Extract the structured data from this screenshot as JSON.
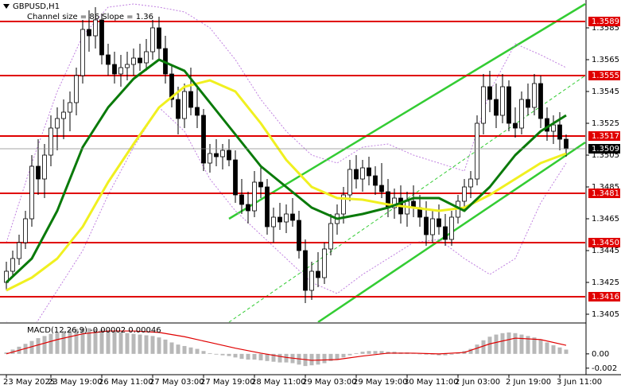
{
  "chart_data": {
    "type": "candlestick",
    "title": "GBPUSD,H1",
    "subtitle": "Channel size = 86 Slope = 1.36",
    "xlim": [
      -1,
      91
    ],
    "ylim": [
      1.34,
      1.36025
    ],
    "yticks": [
      1.3585,
      1.3565,
      1.3545,
      1.3525,
      1.3505,
      1.3485,
      1.3465,
      1.3445,
      1.3425,
      1.3405
    ],
    "xticks": [
      {
        "value": 0,
        "label": "23 May 2025"
      },
      {
        "value": 7,
        "label": "23 May 19:00"
      },
      {
        "value": 15,
        "label": "26 May 11:00"
      },
      {
        "value": 23,
        "label": "27 May 03:00"
      },
      {
        "value": 31,
        "label": "27 May 19:00"
      },
      {
        "value": 39,
        "label": "28 May 11:00"
      },
      {
        "value": 47,
        "label": "29 May 03:00"
      },
      {
        "value": 55,
        "label": "29 May 19:00"
      },
      {
        "value": 63,
        "label": "30 May 11:00"
      },
      {
        "value": 71,
        "label": "2 Jun 03:00"
      },
      {
        "value": 79,
        "label": "2 Jun 19:00"
      },
      {
        "value": 87,
        "label": "3 Jun 11:00"
      }
    ],
    "up_color": "#ffffff",
    "down_color": "#000000",
    "candles": [
      [
        1.3425,
        1.3438,
        1.342,
        1.3432
      ],
      [
        1.3432,
        1.3445,
        1.3428,
        1.344
      ],
      [
        1.344,
        1.3455,
        1.3436,
        1.345
      ],
      [
        1.345,
        1.347,
        1.3446,
        1.3465
      ],
      [
        1.3465,
        1.3505,
        1.346,
        1.3498
      ],
      [
        1.3498,
        1.3515,
        1.348,
        1.349
      ],
      [
        1.349,
        1.3512,
        1.3478,
        1.3505
      ],
      [
        1.3505,
        1.353,
        1.3498,
        1.3522
      ],
      [
        1.3522,
        1.3535,
        1.3508,
        1.3528
      ],
      [
        1.3528,
        1.354,
        1.3515,
        1.3532
      ],
      [
        1.3532,
        1.3545,
        1.352,
        1.3538
      ],
      [
        1.3538,
        1.356,
        1.353,
        1.3555
      ],
      [
        1.3555,
        1.359,
        1.355,
        1.3584
      ],
      [
        1.3584,
        1.3596,
        1.357,
        1.358
      ],
      [
        1.358,
        1.3598,
        1.3572,
        1.359
      ],
      [
        1.359,
        1.3594,
        1.3562,
        1.3568
      ],
      [
        1.3568,
        1.3575,
        1.3555,
        1.3562
      ],
      [
        1.3562,
        1.357,
        1.355,
        1.3556
      ],
      [
        1.3556,
        1.3568,
        1.3548,
        1.356
      ],
      [
        1.356,
        1.357,
        1.3552,
        1.3562
      ],
      [
        1.3562,
        1.3572,
        1.3555,
        1.3566
      ],
      [
        1.3566,
        1.3575,
        1.3558,
        1.3563
      ],
      [
        1.3563,
        1.3578,
        1.3558,
        1.357
      ],
      [
        1.357,
        1.359,
        1.3565,
        1.3585
      ],
      [
        1.3585,
        1.3592,
        1.3565,
        1.3572
      ],
      [
        1.3572,
        1.358,
        1.355,
        1.3556
      ],
      [
        1.3556,
        1.3562,
        1.3535,
        1.354
      ],
      [
        1.354,
        1.3548,
        1.3518,
        1.3528
      ],
      [
        1.3528,
        1.355,
        1.3522,
        1.3545
      ],
      [
        1.3545,
        1.356,
        1.353,
        1.3535
      ],
      [
        1.3535,
        1.3548,
        1.3522,
        1.353
      ],
      [
        1.353,
        1.3534,
        1.3495,
        1.35
      ],
      [
        1.35,
        1.3512,
        1.3494,
        1.3506
      ],
      [
        1.3506,
        1.3515,
        1.3498,
        1.3504
      ],
      [
        1.3504,
        1.3512,
        1.3496,
        1.3508
      ],
      [
        1.3508,
        1.3515,
        1.3498,
        1.3502
      ],
      [
        1.3502,
        1.3508,
        1.3475,
        1.348
      ],
      [
        1.348,
        1.349,
        1.3468,
        1.3474
      ],
      [
        1.3474,
        1.3482,
        1.3462,
        1.347
      ],
      [
        1.347,
        1.3495,
        1.3466,
        1.3488
      ],
      [
        1.3488,
        1.3498,
        1.3478,
        1.3485
      ],
      [
        1.3485,
        1.349,
        1.3455,
        1.346
      ],
      [
        1.346,
        1.3472,
        1.345,
        1.3466
      ],
      [
        1.3466,
        1.3475,
        1.3458,
        1.3463
      ],
      [
        1.3463,
        1.3474,
        1.3456,
        1.3468
      ],
      [
        1.3468,
        1.3478,
        1.346,
        1.3464
      ],
      [
        1.3464,
        1.347,
        1.344,
        1.3445
      ],
      [
        1.3445,
        1.3452,
        1.3412,
        1.342
      ],
      [
        1.342,
        1.3438,
        1.3414,
        1.3432
      ],
      [
        1.3432,
        1.3444,
        1.3422,
        1.3428
      ],
      [
        1.3428,
        1.345,
        1.3424,
        1.3446
      ],
      [
        1.3446,
        1.3468,
        1.3442,
        1.3462
      ],
      [
        1.3462,
        1.3474,
        1.3455,
        1.3468
      ],
      [
        1.3468,
        1.3485,
        1.3462,
        1.348
      ],
      [
        1.348,
        1.3502,
        1.3476,
        1.3496
      ],
      [
        1.3496,
        1.3505,
        1.3484,
        1.349
      ],
      [
        1.349,
        1.3502,
        1.3482,
        1.3497
      ],
      [
        1.3497,
        1.3504,
        1.3486,
        1.3492
      ],
      [
        1.3492,
        1.3498,
        1.348,
        1.3486
      ],
      [
        1.3486,
        1.35,
        1.3478,
        1.3482
      ],
      [
        1.3482,
        1.349,
        1.3466,
        1.3472
      ],
      [
        1.3472,
        1.3484,
        1.3465,
        1.3478
      ],
      [
        1.3478,
        1.3486,
        1.3462,
        1.3468
      ],
      [
        1.3468,
        1.3482,
        1.346,
        1.3476
      ],
      [
        1.3476,
        1.3486,
        1.3466,
        1.3472
      ],
      [
        1.3472,
        1.348,
        1.346,
        1.3466
      ],
      [
        1.3466,
        1.3476,
        1.3448,
        1.3455
      ],
      [
        1.3455,
        1.347,
        1.345,
        1.3465
      ],
      [
        1.3465,
        1.3474,
        1.3455,
        1.346
      ],
      [
        1.346,
        1.3468,
        1.3448,
        1.3452
      ],
      [
        1.3452,
        1.347,
        1.3448,
        1.3466
      ],
      [
        1.3466,
        1.348,
        1.3462,
        1.3476
      ],
      [
        1.3476,
        1.349,
        1.347,
        1.3485
      ],
      [
        1.3485,
        1.3495,
        1.3478,
        1.349
      ],
      [
        1.349,
        1.353,
        1.3486,
        1.3525
      ],
      [
        1.3525,
        1.3556,
        1.3518,
        1.3548
      ],
      [
        1.3548,
        1.3558,
        1.3532,
        1.354
      ],
      [
        1.354,
        1.355,
        1.3522,
        1.353
      ],
      [
        1.353,
        1.3556,
        1.3525,
        1.3548
      ],
      [
        1.3548,
        1.3552,
        1.352,
        1.3525
      ],
      [
        1.3525,
        1.3535,
        1.3516,
        1.3522
      ],
      [
        1.3522,
        1.3545,
        1.3518,
        1.354
      ],
      [
        1.354,
        1.355,
        1.353,
        1.3535
      ],
      [
        1.3535,
        1.3556,
        1.353,
        1.355
      ],
      [
        1.355,
        1.3555,
        1.3522,
        1.3528
      ],
      [
        1.3528,
        1.3535,
        1.3514,
        1.352
      ],
      [
        1.352,
        1.353,
        1.3512,
        1.3524
      ],
      [
        1.3524,
        1.3532,
        1.3508,
        1.3515
      ],
      [
        1.3515,
        1.3518,
        1.3504,
        1.3509
      ]
    ],
    "ma_x": [
      0,
      4,
      8,
      12,
      16,
      20,
      24,
      28,
      32,
      36,
      40,
      44,
      48,
      52,
      56,
      60,
      64,
      68,
      72,
      76,
      80,
      84,
      88
    ],
    "lines": [
      {
        "color": "#c080e0",
        "width": 1,
        "dashed": true,
        "values": [
          1.345,
          1.35,
          1.3545,
          1.358,
          1.3598,
          1.36,
          1.3598,
          1.3595,
          1.3585,
          1.3565,
          1.354,
          1.352,
          1.3505,
          1.35,
          1.351,
          1.3512,
          1.3505,
          1.35,
          1.3495,
          1.3545,
          1.3575,
          1.3568,
          1.356
        ]
      },
      {
        "color": "#c080e0",
        "width": 1,
        "dashed": true,
        "values": [
          1.34,
          1.3395,
          1.342,
          1.3445,
          1.348,
          1.351,
          1.3535,
          1.352,
          1.349,
          1.347,
          1.3455,
          1.344,
          1.3425,
          1.3418,
          1.343,
          1.344,
          1.345,
          1.3452,
          1.344,
          1.343,
          1.344,
          1.3475,
          1.35
        ]
      },
      {
        "color": "#f0f020",
        "width": 3,
        "dashed": false,
        "values": [
          1.342,
          1.3428,
          1.344,
          1.346,
          1.3488,
          1.3512,
          1.3535,
          1.3548,
          1.3552,
          1.3545,
          1.3525,
          1.3502,
          1.3485,
          1.3478,
          1.3477,
          1.3474,
          1.3472,
          1.347,
          1.3472,
          1.348,
          1.349,
          1.35,
          1.3506
        ]
      },
      {
        "color": "#0a7a0a",
        "width": 3,
        "dashed": false,
        "values": [
          1.3425,
          1.344,
          1.347,
          1.351,
          1.3535,
          1.3553,
          1.3565,
          1.3558,
          1.3538,
          1.3518,
          1.3498,
          1.3485,
          1.3472,
          1.3465,
          1.3468,
          1.3472,
          1.3478,
          1.3478,
          1.347,
          1.3485,
          1.3505,
          1.352,
          1.353
        ]
      }
    ],
    "channel_color": "#33cc33",
    "channel": [
      {
        "x": [
          35,
          91
        ],
        "values": [
          1.3465,
          1.36
        ],
        "dashed": false
      },
      {
        "x": [
          35,
          91
        ],
        "values": [
          1.34,
          1.3555
        ],
        "dashed": true
      },
      {
        "x": [
          49,
          91
        ],
        "values": [
          1.34,
          1.3513
        ],
        "dashed": false
      }
    ],
    "level_color": "#e00000",
    "levels": [
      1.3589,
      1.3555,
      1.3517,
      1.3481,
      {
        "value": 1.345,
        "label": "1.3450"
      },
      1.3416
    ],
    "last_price": 1.3509,
    "macd": {
      "title": "MACD(12,26,9) -0.00002 0.00046",
      "ylim": [
        -0.0028,
        0.0041
      ],
      "yticks": [
        {
          "value": 0,
          "label": "0.00"
        },
        {
          "value": -0.002,
          "label": "-0.002"
        }
      ],
      "hist_color": "#b8b8b8",
      "signal_color": "#e00000",
      "histogram": [
        0.0002,
        0.0006,
        0.001,
        0.0014,
        0.0018,
        0.0022,
        0.0025,
        0.0028,
        0.003,
        0.0032,
        0.0034,
        0.0035,
        0.0036,
        0.0036,
        0.0035,
        0.0034,
        0.0032,
        0.0031,
        0.003,
        0.0029,
        0.0028,
        0.0027,
        0.0026,
        0.0025,
        0.0023,
        0.002,
        0.0016,
        0.0013,
        0.0011,
        0.0009,
        0.0007,
        0.0004,
        0.0001,
        -0.0001,
        -0.0002,
        -0.0003,
        -0.0005,
        -0.0007,
        -0.0008,
        -0.0008,
        -0.0009,
        -0.001,
        -0.0011,
        -0.0012,
        -0.0012,
        -0.0013,
        -0.0015,
        -0.0017,
        -0.0016,
        -0.0015,
        -0.0013,
        -0.001,
        -0.0008,
        -0.0005,
        -0.0002,
        0.0001,
        0.0003,
        0.0004,
        0.0004,
        0.0004,
        0.0003,
        0.0003,
        0.0002,
        0.0002,
        0.0001,
        0.0,
        -0.0001,
        -0.0001,
        -0.0002,
        -0.0002,
        -0.0001,
        0.0001,
        0.0004,
        0.0007,
        0.0013,
        0.0019,
        0.0024,
        0.0027,
        0.0029,
        0.003,
        0.0029,
        0.0027,
        0.0025,
        0.0023,
        0.002,
        0.0016,
        0.0012,
        0.0009,
        0.0006
      ],
      "signal": [
        0.0,
        0.001,
        0.002,
        0.0028,
        0.0032,
        0.0032,
        0.003,
        0.0024,
        0.0016,
        0.0008,
        0.0001,
        -0.0005,
        -0.0009,
        -0.0008,
        -0.0003,
        0.0001,
        0.0001,
        0.0,
        0.0002,
        0.0014,
        0.0022,
        0.002,
        0.0012
      ]
    }
  }
}
